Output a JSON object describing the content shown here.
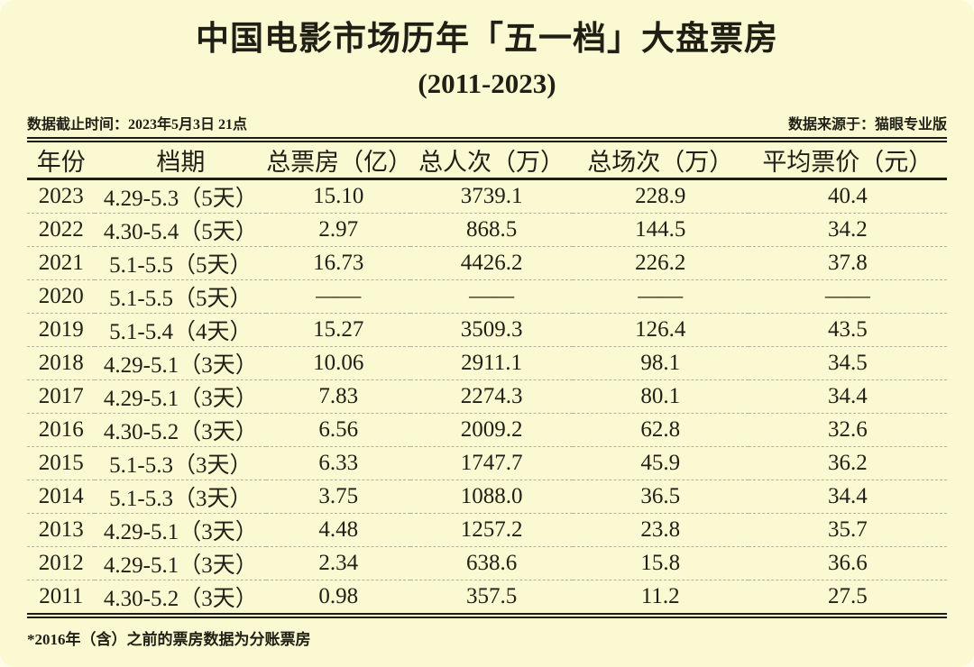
{
  "title": "中国电影市场历年「五一档」大盘票房",
  "subtitle": "(2011-2023)",
  "meta": {
    "cutoff": "数据截止时间：2023年5月3日 21点",
    "source": "数据来源于：猫眼专业版"
  },
  "chart_data": {
    "type": "table",
    "title": "中国电影市场历年「五一档」大盘票房 (2011-2023)",
    "columns": [
      "年份",
      "档期",
      "总票房（亿）",
      "总人次（万）",
      "总场次（万）",
      "平均票价（元）"
    ],
    "rows": [
      [
        "2023",
        "4.29-5.3（5天）",
        "15.10",
        "3739.1",
        "228.9",
        "40.4"
      ],
      [
        "2022",
        "4.30-5.4（5天）",
        "2.97",
        "868.5",
        "144.5",
        "34.2"
      ],
      [
        "2021",
        "5.1-5.5（5天）",
        "16.73",
        "4426.2",
        "226.2",
        "37.8"
      ],
      [
        "2020",
        "5.1-5.5（5天）",
        "——",
        "——",
        "——",
        "——"
      ],
      [
        "2019",
        "5.1-5.4（4天）",
        "15.27",
        "3509.3",
        "126.4",
        "43.5"
      ],
      [
        "2018",
        "4.29-5.1（3天）",
        "10.06",
        "2911.1",
        "98.1",
        "34.5"
      ],
      [
        "2017",
        "4.29-5.1（3天）",
        "7.83",
        "2274.3",
        "80.1",
        "34.4"
      ],
      [
        "2016",
        "4.30-5.2（3天）",
        "6.56",
        "2009.2",
        "62.8",
        "32.6"
      ],
      [
        "2015",
        "5.1-5.3（3天）",
        "6.33",
        "1747.7",
        "45.9",
        "36.2"
      ],
      [
        "2014",
        "5.1-5.3（3天）",
        "3.75",
        "1088.0",
        "36.5",
        "34.4"
      ],
      [
        "2013",
        "4.29-5.1（3天）",
        "4.48",
        "1257.2",
        "23.8",
        "35.7"
      ],
      [
        "2012",
        "4.29-5.1（3天）",
        "2.34",
        "638.6",
        "15.8",
        "36.6"
      ],
      [
        "2011",
        "4.30-5.2（3天）",
        "0.98",
        "357.5",
        "11.2",
        "27.5"
      ]
    ]
  },
  "footnote": "*2016年（含）之前的票房数据为分账票房",
  "colors": {
    "background": "#fbf9d2",
    "text": "#201f15",
    "rule": "#1e1d12",
    "row_divider": "#b3b2a0"
  }
}
